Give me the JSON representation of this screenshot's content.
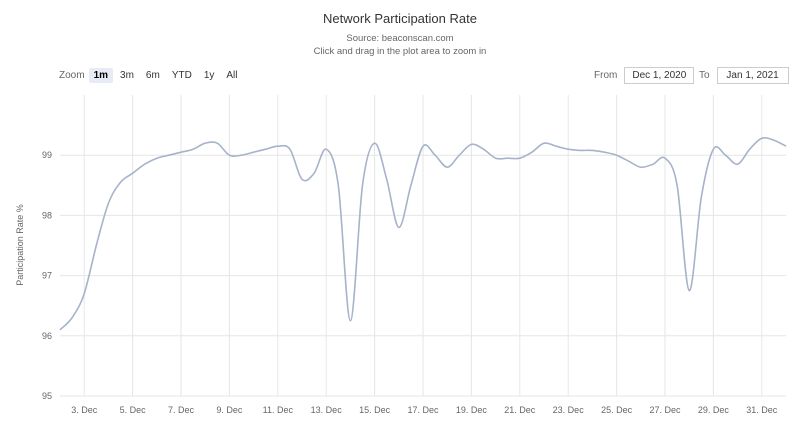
{
  "header": {
    "title": "Network Participation Rate",
    "subtitle1": "Source: beaconscan.com",
    "subtitle2": "Click and drag in the plot area to zoom in"
  },
  "zoom": {
    "label": "Zoom",
    "buttons": [
      "1m",
      "3m",
      "6m",
      "YTD",
      "1y",
      "All"
    ],
    "active": "1m"
  },
  "range": {
    "from_label": "From",
    "from_value": "Dec 1, 2020",
    "to_label": "To",
    "to_value": "Jan 1, 2021"
  },
  "colors": {
    "series": "#a6b3c9",
    "grid": "#e6e6e6",
    "active_button": "#e6ebf5"
  },
  "chart_data": {
    "type": "line",
    "title": "Network Participation Rate",
    "ylabel": "Participation Rate %",
    "xlabel": "",
    "ylim": [
      95,
      100
    ],
    "xlim": [
      2,
      32
    ],
    "yticks": [
      95,
      96,
      97,
      98,
      99
    ],
    "xticks": [
      {
        "value": 3,
        "label": "3. Dec"
      },
      {
        "value": 5,
        "label": "5. Dec"
      },
      {
        "value": 7,
        "label": "7. Dec"
      },
      {
        "value": 9,
        "label": "9. Dec"
      },
      {
        "value": 11,
        "label": "11. Dec"
      },
      {
        "value": 13,
        "label": "13. Dec"
      },
      {
        "value": 15,
        "label": "15. Dec"
      },
      {
        "value": 17,
        "label": "17. Dec"
      },
      {
        "value": 19,
        "label": "19. Dec"
      },
      {
        "value": 21,
        "label": "21. Dec"
      },
      {
        "value": 23,
        "label": "23. Dec"
      },
      {
        "value": 25,
        "label": "25. Dec"
      },
      {
        "value": 27,
        "label": "27. Dec"
      },
      {
        "value": 29,
        "label": "29. Dec"
      },
      {
        "value": 31,
        "label": "31. Dec"
      }
    ],
    "grid": true,
    "series": [
      {
        "x": [
          2.0,
          2.5,
          3.0,
          3.5,
          4.0,
          4.5,
          5.0,
          5.5,
          6.0,
          6.5,
          7.0,
          7.5,
          8.0,
          8.5,
          9.0,
          9.5,
          10.0,
          10.5,
          11.0,
          11.5,
          12.0,
          12.5,
          13.0,
          13.5,
          14.0,
          14.5,
          15.0,
          15.5,
          16.0,
          16.5,
          17.0,
          17.5,
          18.0,
          18.5,
          19.0,
          19.5,
          20.0,
          20.5,
          21.0,
          21.5,
          22.0,
          22.5,
          23.0,
          23.5,
          24.0,
          24.5,
          25.0,
          25.5,
          26.0,
          26.5,
          27.0,
          27.5,
          28.0,
          28.5,
          29.0,
          29.5,
          30.0,
          30.5,
          31.0,
          31.5,
          32.0
        ],
        "values": [
          96.1,
          96.3,
          96.7,
          97.5,
          98.2,
          98.55,
          98.7,
          98.85,
          98.95,
          99.0,
          99.05,
          99.1,
          99.2,
          99.2,
          99.0,
          99.0,
          99.05,
          99.1,
          99.15,
          99.1,
          98.6,
          98.7,
          99.1,
          98.5,
          96.25,
          98.5,
          99.2,
          98.6,
          97.8,
          98.5,
          99.15,
          99.0,
          98.8,
          99.0,
          99.18,
          99.1,
          98.95,
          98.95,
          98.95,
          99.05,
          99.2,
          99.15,
          99.1,
          99.08,
          99.08,
          99.05,
          99.0,
          98.9,
          98.8,
          98.85,
          98.95,
          98.5,
          96.75,
          98.3,
          99.1,
          99.0,
          98.85,
          99.1,
          99.28,
          99.25,
          99.15
        ]
      }
    ]
  }
}
